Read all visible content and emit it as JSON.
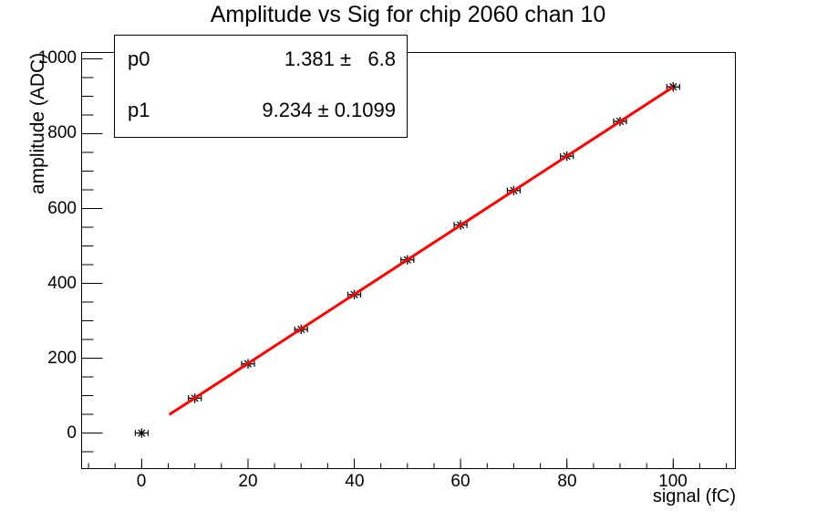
{
  "title": "Amplitude vs Sig for chip 2060 chan 10",
  "stats_box": {
    "rows": [
      {
        "name": "p0",
        "value": "1.381 ±   6.8"
      },
      {
        "name": "p1",
        "value": "9.234 ± 0.1099"
      }
    ]
  },
  "colors": {
    "background": "#ffffff",
    "frame": "#000000",
    "marker": "#000000",
    "fit_line": "#ff0000"
  },
  "chart_data": {
    "type": "scatter",
    "title": "Amplitude vs Sig for chip 2060 chan 10",
    "xlabel": "signal (fC)",
    "ylabel": "amplitude (ADC)",
    "x": [
      0,
      10,
      20,
      30,
      40,
      50,
      60,
      70,
      80,
      90,
      100
    ],
    "y": [
      0,
      93,
      185,
      277,
      370,
      463,
      556,
      648,
      740,
      833,
      925
    ],
    "x_error": 1.2,
    "marker": "asterisk-with-x-error-bars",
    "xlim": [
      -11.3,
      111.7
    ],
    "ylim": [
      -95,
      1017
    ],
    "x_major_ticks": [
      0,
      20,
      40,
      60,
      80,
      100
    ],
    "x_minor_step": 5,
    "y_major_ticks": [
      0,
      200,
      400,
      600,
      800,
      1000
    ],
    "y_minor_step": 50,
    "grid": false,
    "legend_position": "stats-box-top-left",
    "fit": {
      "type": "linear",
      "p0": 1.381,
      "p0_err": 6.8,
      "p1": 9.234,
      "p1_err": 0.1099,
      "range": [
        5.2,
        100
      ],
      "color": "#ff0000",
      "line_width": 3
    }
  }
}
